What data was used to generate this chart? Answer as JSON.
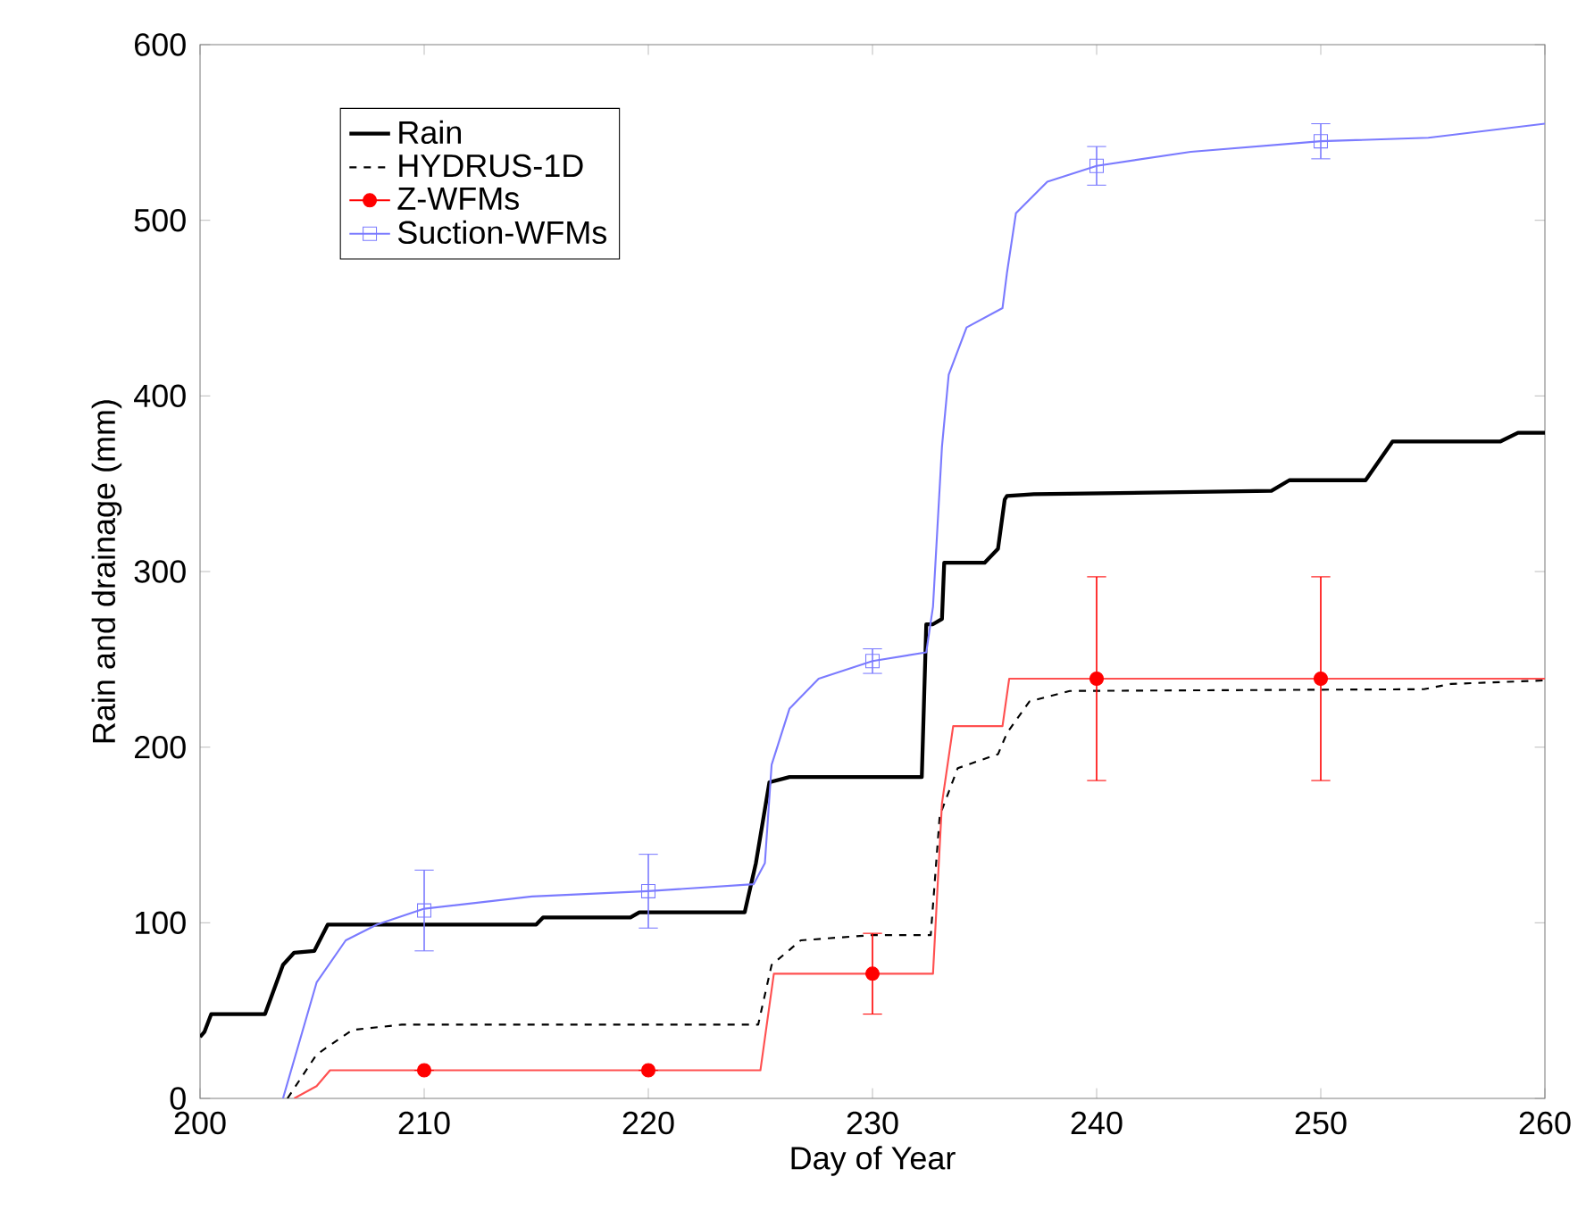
{
  "chart_data": {
    "type": "line",
    "xlabel": "Day of Year",
    "ylabel": "Rain and drainage (mm)",
    "xlim": [
      200,
      260
    ],
    "ylim": [
      0,
      600
    ],
    "xticks": [
      200,
      210,
      220,
      230,
      240,
      250,
      260
    ],
    "yticks": [
      0,
      100,
      200,
      300,
      400,
      500,
      600
    ],
    "grid": false,
    "legend": "top left",
    "series": [
      {
        "name": "Rain",
        "color": "#000000",
        "line_style": "solid",
        "x": [
          200,
          200.2,
          200.5,
          202.9,
          203.7,
          204.2,
          205.1,
          205.7,
          215,
          215.3,
          219.2,
          219.6,
          224.3,
          224.8,
          225.4,
          226.3,
          232.2,
          232.4,
          232.7,
          233.1,
          233.2,
          233.4,
          235,
          235.6,
          235.9,
          236,
          237.2,
          247.8,
          248.6,
          252,
          253.2,
          258,
          258.8,
          260
        ],
        "values": [
          35,
          38,
          48,
          48,
          76,
          83,
          84,
          99,
          99,
          103,
          103,
          106,
          106,
          134,
          180,
          183,
          183,
          270,
          270,
          273,
          305,
          305,
          305,
          313,
          341,
          343,
          344,
          346,
          352,
          352,
          374,
          374,
          379,
          379
        ]
      },
      {
        "name": "HYDRUS-1D",
        "color": "#000000",
        "line_style": "dashed",
        "x": [
          203.9,
          205.2,
          206.8,
          209,
          224.9,
          225.5,
          226.8,
          230,
          232.6,
          233,
          233.8,
          235.6,
          236,
          237,
          238.8,
          254.6,
          255.8,
          260
        ],
        "values": [
          0,
          25,
          39,
          42,
          42,
          76,
          90,
          93,
          93,
          161,
          188,
          196,
          208,
          226,
          232,
          233,
          236,
          238
        ]
      },
      {
        "color": "#ff5050",
        "line_style": "solid",
        "x": [
          204.2,
          205.2,
          205.8,
          225,
          225.6,
          232.7,
          233.1,
          233.6,
          235.8,
          236.1,
          260
        ],
        "values": [
          0,
          7,
          16,
          16,
          71,
          71,
          168,
          212,
          212,
          239,
          239
        ]
      },
      {
        "name": "Z-WFMs",
        "type": "scatter",
        "color": "#ff0000",
        "marker": "circle",
        "x": [
          210,
          220,
          230,
          240,
          250
        ],
        "values": [
          16,
          16,
          71,
          239,
          239
        ],
        "errors": [
          null,
          null,
          23,
          58,
          58
        ]
      },
      {
        "color": "#7b7bff",
        "line_style": "solid",
        "x": [
          203.7,
          205.2,
          206.5,
          207.9,
          210,
          214.8,
          220,
          224.7,
          225.2,
          225.5,
          226.3,
          227.6,
          230,
          232.4,
          232.7,
          233.1,
          233.4,
          234.2,
          235.8,
          236,
          236.4,
          237.8,
          240,
          244.2,
          250,
          254.8,
          260
        ],
        "values": [
          0,
          66,
          90,
          99,
          108,
          115,
          118,
          122,
          134,
          190,
          222,
          239,
          249,
          254,
          280,
          371,
          412,
          439,
          450,
          470,
          504,
          522,
          531,
          539,
          545,
          547,
          555
        ]
      },
      {
        "name": "Suction-WFMs",
        "type": "scatter",
        "color": "#7b7bff",
        "marker": "square",
        "x": [
          210,
          220,
          230,
          240,
          250
        ],
        "values": [
          107,
          118,
          249,
          531,
          545
        ],
        "errors": [
          23,
          21,
          7,
          11,
          10
        ]
      }
    ]
  }
}
